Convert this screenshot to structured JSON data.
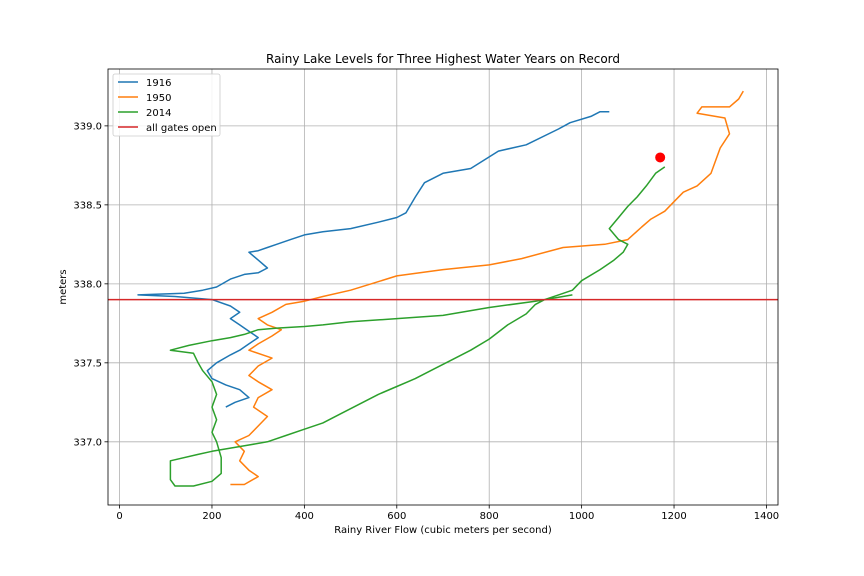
{
  "chart_data": {
    "type": "line",
    "title": "Rainy Lake Levels for Three Highest Water Years on Record",
    "xlabel": "Rainy River Flow (cubic meters per second)",
    "ylabel": "meters",
    "xlim": [
      -25,
      1425
    ],
    "ylim": [
      336.6,
      339.36
    ],
    "xticks": [
      0,
      200,
      400,
      600,
      800,
      1000,
      1200,
      1400
    ],
    "yticks": [
      337.0,
      337.5,
      338.0,
      338.5,
      339.0
    ],
    "ytick_labels": [
      "337.0",
      "337.5",
      "338.0",
      "338.5",
      "339.0"
    ],
    "grid": true,
    "legend_position": "top-left",
    "series": [
      {
        "name": "1916",
        "color": "#1f77b4",
        "points": [
          [
            1060,
            339.09
          ],
          [
            1040,
            339.09
          ],
          [
            1020,
            339.06
          ],
          [
            975,
            339.02
          ],
          [
            950,
            338.98
          ],
          [
            880,
            338.88
          ],
          [
            820,
            338.84
          ],
          [
            760,
            338.73
          ],
          [
            700,
            338.7
          ],
          [
            660,
            338.64
          ],
          [
            640,
            338.55
          ],
          [
            620,
            338.45
          ],
          [
            600,
            338.42
          ],
          [
            560,
            338.39
          ],
          [
            500,
            338.35
          ],
          [
            440,
            338.33
          ],
          [
            400,
            338.31
          ],
          [
            370,
            338.28
          ],
          [
            340,
            338.25
          ],
          [
            320,
            338.23
          ],
          [
            300,
            338.21
          ],
          [
            280,
            338.2
          ],
          [
            300,
            338.15
          ],
          [
            320,
            338.1
          ],
          [
            300,
            338.07
          ],
          [
            270,
            338.06
          ],
          [
            240,
            338.03
          ],
          [
            210,
            337.98
          ],
          [
            180,
            337.96
          ],
          [
            140,
            337.94
          ],
          [
            40,
            337.93
          ],
          [
            120,
            337.92
          ],
          [
            200,
            337.9
          ],
          [
            240,
            337.86
          ],
          [
            260,
            337.82
          ],
          [
            240,
            337.78
          ],
          [
            260,
            337.74
          ],
          [
            280,
            337.7
          ],
          [
            300,
            337.66
          ],
          [
            280,
            337.62
          ],
          [
            260,
            337.58
          ],
          [
            240,
            337.55
          ],
          [
            210,
            337.5
          ],
          [
            190,
            337.45
          ],
          [
            200,
            337.4
          ],
          [
            230,
            337.36
          ],
          [
            260,
            337.33
          ],
          [
            280,
            337.28
          ],
          [
            250,
            337.25
          ],
          [
            230,
            337.22
          ]
        ]
      },
      {
        "name": "1950",
        "color": "#ff7f0e",
        "points": [
          [
            1350,
            339.22
          ],
          [
            1340,
            339.17
          ],
          [
            1320,
            339.12
          ],
          [
            1260,
            339.12
          ],
          [
            1250,
            339.08
          ],
          [
            1310,
            339.05
          ],
          [
            1320,
            338.95
          ],
          [
            1300,
            338.86
          ],
          [
            1290,
            338.78
          ],
          [
            1280,
            338.7
          ],
          [
            1250,
            338.62
          ],
          [
            1220,
            338.58
          ],
          [
            1200,
            338.52
          ],
          [
            1180,
            338.46
          ],
          [
            1150,
            338.41
          ],
          [
            1130,
            338.36
          ],
          [
            1100,
            338.28
          ],
          [
            1050,
            338.25
          ],
          [
            960,
            338.23
          ],
          [
            870,
            338.16
          ],
          [
            800,
            338.12
          ],
          [
            700,
            338.09
          ],
          [
            600,
            338.05
          ],
          [
            500,
            337.96
          ],
          [
            440,
            337.92
          ],
          [
            400,
            337.89
          ],
          [
            360,
            337.87
          ],
          [
            330,
            337.82
          ],
          [
            300,
            337.78
          ],
          [
            320,
            337.74
          ],
          [
            350,
            337.71
          ],
          [
            330,
            337.67
          ],
          [
            300,
            337.62
          ],
          [
            280,
            337.58
          ],
          [
            330,
            337.53
          ],
          [
            300,
            337.48
          ],
          [
            280,
            337.42
          ],
          [
            300,
            337.38
          ],
          [
            330,
            337.33
          ],
          [
            300,
            337.28
          ],
          [
            290,
            337.22
          ],
          [
            320,
            337.16
          ],
          [
            300,
            337.1
          ],
          [
            280,
            337.04
          ],
          [
            250,
            337.0
          ],
          [
            270,
            336.94
          ],
          [
            260,
            336.88
          ],
          [
            280,
            336.82
          ],
          [
            300,
            336.78
          ],
          [
            270,
            336.73
          ],
          [
            240,
            336.73
          ]
        ]
      },
      {
        "name": "2014",
        "color": "#2ca02c",
        "points": [
          [
            1180,
            338.74
          ],
          [
            1160,
            338.7
          ],
          [
            1140,
            338.62
          ],
          [
            1120,
            338.55
          ],
          [
            1100,
            338.49
          ],
          [
            1080,
            338.42
          ],
          [
            1060,
            338.35
          ],
          [
            1080,
            338.28
          ],
          [
            1100,
            338.25
          ],
          [
            1090,
            338.2
          ],
          [
            1070,
            338.15
          ],
          [
            1040,
            338.09
          ],
          [
            1000,
            338.02
          ],
          [
            980,
            337.96
          ],
          [
            950,
            337.93
          ],
          [
            920,
            337.9
          ],
          [
            900,
            337.87
          ],
          [
            880,
            337.81
          ],
          [
            840,
            337.74
          ],
          [
            800,
            337.65
          ],
          [
            760,
            337.58
          ],
          [
            720,
            337.52
          ],
          [
            680,
            337.46
          ],
          [
            640,
            337.4
          ],
          [
            600,
            337.35
          ],
          [
            560,
            337.3
          ],
          [
            520,
            337.24
          ],
          [
            480,
            337.18
          ],
          [
            440,
            337.12
          ],
          [
            400,
            337.08
          ],
          [
            360,
            337.04
          ],
          [
            320,
            337.0
          ],
          [
            280,
            336.98
          ],
          [
            240,
            336.96
          ],
          [
            200,
            336.94
          ],
          [
            170,
            336.92
          ],
          [
            110,
            336.88
          ],
          [
            110,
            336.8
          ],
          [
            110,
            336.76
          ],
          [
            120,
            336.72
          ],
          [
            160,
            336.72
          ],
          [
            200,
            336.75
          ],
          [
            220,
            336.8
          ],
          [
            220,
            336.9
          ],
          [
            210,
            337.0
          ],
          [
            200,
            337.06
          ],
          [
            210,
            337.14
          ],
          [
            200,
            337.22
          ],
          [
            210,
            337.3
          ],
          [
            200,
            337.38
          ],
          [
            180,
            337.45
          ],
          [
            170,
            337.5
          ],
          [
            160,
            337.56
          ],
          [
            110,
            337.58
          ],
          [
            150,
            337.61
          ],
          [
            200,
            337.64
          ],
          [
            240,
            337.66
          ],
          [
            270,
            337.68
          ],
          [
            300,
            337.71
          ],
          [
            340,
            337.72
          ],
          [
            400,
            337.73
          ],
          [
            440,
            337.74
          ],
          [
            500,
            337.76
          ],
          [
            600,
            337.78
          ],
          [
            700,
            337.8
          ],
          [
            800,
            337.85
          ],
          [
            900,
            337.89
          ],
          [
            980,
            337.93
          ]
        ]
      }
    ],
    "reference_line": {
      "name": "all gates open",
      "color": "#d62728",
      "y": 337.9
    },
    "marker": {
      "x": 1170,
      "y": 338.8,
      "color": "#ff0000"
    }
  }
}
